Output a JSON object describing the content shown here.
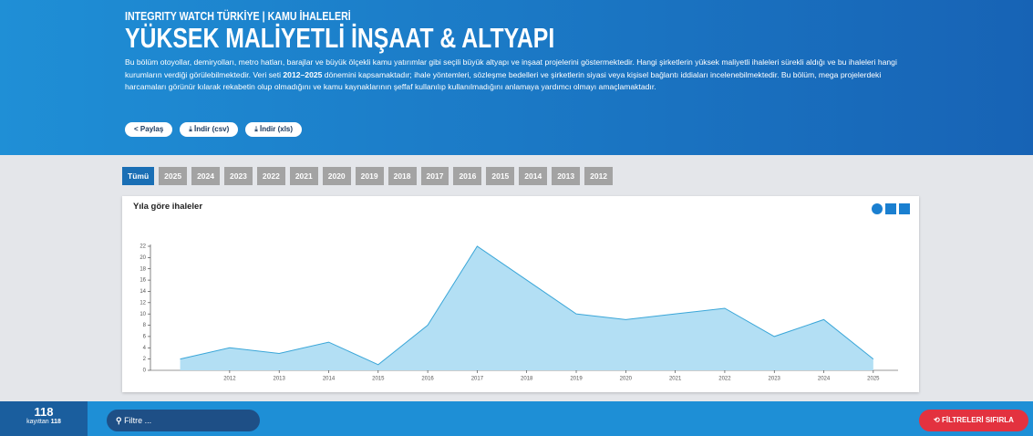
{
  "header": {
    "kicker": "INTEGRITY WATCH TÜRKİYE | KAMU İHALELERİ",
    "title": "YÜKSEK MALİYETLİ İNŞAAT & ALTYAPI",
    "description": [
      "Bu bölüm otoyollar, demiryolları, metro hatları, barajlar ve büyük ölçekli kamu yatırımlar gibi seçili büyük altyapı ve inşaat projelerini göstermektedir. Hangi şirketlerin yüksek maliyetli ihaleleri sürekli aldığı ve bu ihaleleri hangi kurumların verdiği görülebilmektedir. Veri seti ",
      "2012–2025",
      " dönemini kapsamaktadır; ihale yöntemleri, sözleşme bedelleri ve şirketlerin siyasi veya kişisel bağlantı iddiaları incelenebilmektedir. Bu bölüm, mega projelerdeki harcamaları görünür kılarak rekabetin olup olmadığını ve kamu kaynaklarının şeffaf kullanılıp kullanılmadığını anlamaya yardımcı olmayı amaçlamaktadır."
    ],
    "buttons": [
      "Paylaş",
      "İndir (csv)",
      "İndir (xls)"
    ]
  },
  "year_filters": [
    "Tümü",
    "2025",
    "2024",
    "2023",
    "2022",
    "2021",
    "2020",
    "2019",
    "2018",
    "2017",
    "2016",
    "2015",
    "2014",
    "2013",
    "2012"
  ],
  "chart_data": {
    "type": "area",
    "title": "Yıla göre ihaleler",
    "color": "#b3dff4",
    "line_color": "#3aa6d8",
    "x": [
      2011,
      2012,
      2013,
      2014,
      2015,
      2016,
      2017,
      2018,
      2019,
      2020,
      2021,
      2022,
      2023,
      2024,
      2025
    ],
    "values": [
      2,
      4,
      3,
      5,
      1,
      8,
      22,
      16,
      10,
      9,
      10,
      11,
      6,
      9,
      2
    ],
    "xlim": [
      2010.4,
      2025.5
    ],
    "xticks": [
      2012,
      2013,
      2014,
      2015,
      2016,
      2017,
      2018,
      2019,
      2020,
      2021,
      2022,
      2023,
      2024,
      2025
    ],
    "ylim": [
      0,
      22
    ],
    "yticks": [
      0,
      2,
      4,
      6,
      8,
      10,
      12,
      14,
      16,
      18,
      20,
      22
    ]
  },
  "footer": {
    "count": "118",
    "of_label": "kayıttan",
    "total": "118",
    "filter_placeholder": "Filtre ...",
    "reset": "FİLTRELERİ SIFIRLA"
  }
}
